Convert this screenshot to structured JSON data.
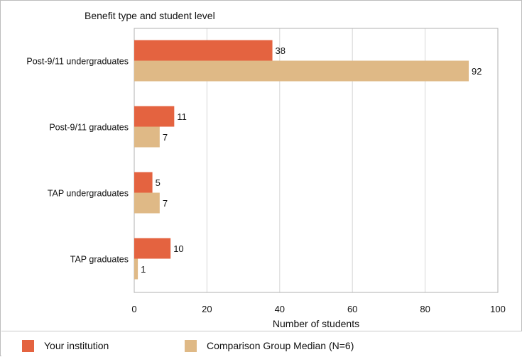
{
  "chart_data": {
    "type": "bar",
    "orientation": "horizontal",
    "title": "Benefit type and student level",
    "xlabel": "Number of students",
    "categories": [
      "Post-9/11 undergraduates",
      "Post-9/11 graduates",
      "TAP undergraduates",
      "TAP graduates"
    ],
    "series": [
      {
        "name": "Your institution",
        "color": "#e46340",
        "values": [
          38,
          11,
          5,
          10
        ]
      },
      {
        "name": "Comparison Group Median (N=6)",
        "color": "#dfb986",
        "values": [
          92,
          7,
          7,
          1
        ]
      }
    ],
    "xlim": [
      0,
      100
    ],
    "xticks": [
      0,
      20,
      40,
      60,
      80,
      100
    ],
    "grid": true,
    "legend_position": "bottom"
  }
}
